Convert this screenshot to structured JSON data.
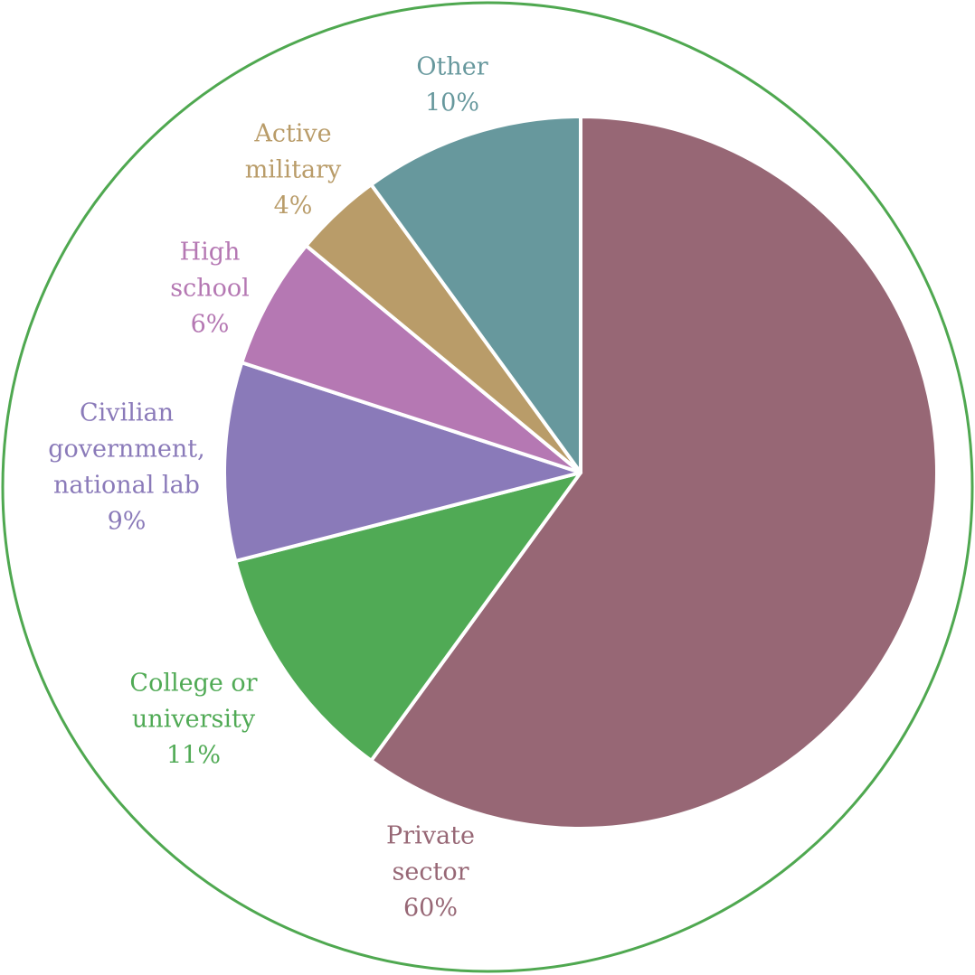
{
  "chart_data": {
    "type": "pie",
    "title": "",
    "slices": [
      {
        "name": "Private sector",
        "label_lines": [
          "Private",
          "sector"
        ],
        "value": 60,
        "percent_label": "60%",
        "color": "#976775"
      },
      {
        "name": "College or university",
        "label_lines": [
          "College or",
          "university"
        ],
        "value": 11,
        "percent_label": "11%",
        "color": "#50aa55"
      },
      {
        "name": "Civilian government, national lab",
        "label_lines": [
          "Civilian",
          "government,",
          "national lab"
        ],
        "value": 9,
        "percent_label": "9%",
        "color": "#8a7ab9"
      },
      {
        "name": "High school",
        "label_lines": [
          "High",
          "school"
        ],
        "value": 6,
        "percent_label": "6%",
        "color": "#b578b3"
      },
      {
        "name": "Active military",
        "label_lines": [
          "Active",
          "military"
        ],
        "value": 4,
        "percent_label": "4%",
        "color": "#b99c69"
      },
      {
        "name": "Other",
        "label_lines": [
          "Other"
        ],
        "value": 10,
        "percent_label": "10%",
        "color": "#67989d"
      }
    ],
    "outer_ring_color": "#4fa850",
    "separator_color": "#ffffff"
  }
}
